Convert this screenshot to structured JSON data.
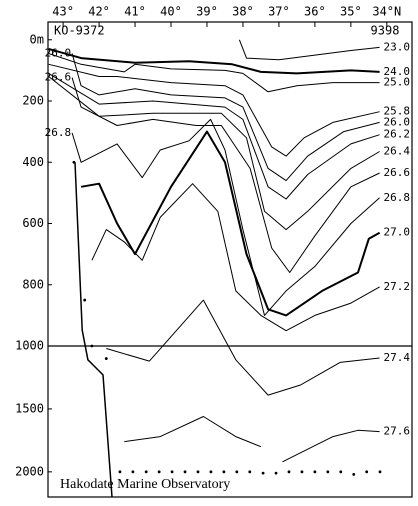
{
  "chart_data": {
    "type": "contour",
    "title": "Hakodate Marine Observatory",
    "start_label": "KO-9372",
    "end_label": "9398",
    "xlim": [
      43.42,
      33.3
    ],
    "xticks": [
      {
        "value": 43,
        "label": "43°"
      },
      {
        "value": 42,
        "label": "42°"
      },
      {
        "value": 41,
        "label": "41°"
      },
      {
        "value": 40,
        "label": "40°"
      },
      {
        "value": 39,
        "label": "39°"
      },
      {
        "value": 38,
        "label": "38°"
      },
      {
        "value": 37,
        "label": "37°"
      },
      {
        "value": 36,
        "label": "36°"
      },
      {
        "value": 35,
        "label": "35°"
      },
      {
        "value": 34,
        "label": "34°N"
      }
    ],
    "ylim": [
      -58,
      2200
    ],
    "scale_break": 1000,
    "yticks": [
      {
        "value": 0,
        "label": "0m"
      },
      200,
      400,
      600,
      800,
      1000,
      1500,
      2000
    ],
    "color": "#000000",
    "series": [
      {
        "name": "23.0",
        "width": 1,
        "x": [
          38.1,
          37.9,
          37.0,
          36.0,
          35.0,
          34.2
        ],
        "values": [
          0,
          60,
          65,
          50,
          35,
          25
        ]
      },
      {
        "name": "24.0",
        "width": 2,
        "x": [
          43.4,
          42.5,
          41.0,
          39.5,
          38.3,
          37.5,
          36.5,
          35.0,
          34.2
        ],
        "values": [
          30,
          60,
          75,
          70,
          80,
          105,
          110,
          100,
          105
        ]
      },
      {
        "name": "25.0",
        "width": 1,
        "x": [
          43.4,
          42.5,
          41.3,
          41.0,
          40.0,
          38.5,
          38.0,
          37.3,
          36.5,
          35.5,
          34.2
        ],
        "values": [
          45,
          80,
          105,
          80,
          95,
          100,
          110,
          170,
          150,
          140,
          140
        ]
      },
      {
        "name": "25.8",
        "width": 1,
        "x": [
          43.4,
          42.0,
          41.5,
          40.0,
          38.5,
          38.0,
          37.2,
          36.8,
          36.3,
          35.5,
          34.2
        ],
        "values": [
          80,
          120,
          120,
          140,
          150,
          180,
          350,
          380,
          320,
          270,
          235
        ]
      },
      {
        "name": "26.0",
        "width": 1,
        "label_left": true,
        "x": [
          42.75,
          42.5,
          42.0,
          41.0,
          40.0,
          38.5,
          38.0,
          37.3,
          36.8,
          36.2,
          35.2,
          34.2
        ],
        "values": [
          45,
          150,
          180,
          160,
          180,
          190,
          220,
          420,
          460,
          380,
          300,
          270
        ]
      },
      {
        "name": "26.2",
        "width": 1,
        "x": [
          43.4,
          42.0,
          40.5,
          38.5,
          38.0,
          37.3,
          36.8,
          36.2,
          35.0,
          34.2
        ],
        "values": [
          110,
          210,
          200,
          220,
          260,
          480,
          520,
          440,
          340,
          310
        ]
      },
      {
        "name": "26.4",
        "width": 1,
        "x": [
          43.4,
          42.0,
          40.5,
          38.6,
          37.9,
          37.4,
          36.8,
          36.2,
          35.0,
          34.2
        ],
        "values": [
          120,
          250,
          240,
          240,
          320,
          560,
          620,
          560,
          420,
          365
        ]
      },
      {
        "name": "26.6",
        "width": 1,
        "label_left": true,
        "x": [
          42.75,
          42.5,
          41.5,
          40.5,
          39.3,
          38.6,
          37.8,
          37.2,
          36.7,
          36.0,
          35.0,
          34.2
        ],
        "values": [
          124,
          220,
          280,
          260,
          280,
          280,
          420,
          680,
          760,
          640,
          480,
          435
        ]
      },
      {
        "name": "26.8",
        "width": 1,
        "label_left": true,
        "x": [
          42.75,
          42.5,
          41.5,
          40.8,
          40.3,
          39.5,
          38.9,
          38.5,
          38.0,
          37.4,
          36.8,
          36.0,
          35.0,
          34.2
        ],
        "values": [
          304,
          400,
          340,
          450,
          360,
          330,
          260,
          360,
          620,
          900,
          820,
          740,
          600,
          516
        ]
      },
      {
        "name": "27.0",
        "width": 2,
        "x": [
          42.5,
          42.0,
          41.5,
          41.0,
          40.0,
          39.0,
          38.5,
          37.9,
          37.3,
          36.8,
          35.8,
          34.8,
          34.5,
          34.2
        ],
        "values": [
          480,
          470,
          600,
          700,
          480,
          300,
          400,
          700,
          880,
          900,
          820,
          760,
          650,
          630
        ]
      },
      {
        "name": "27.2",
        "width": 1,
        "x": [
          42.2,
          41.8,
          41.3,
          40.8,
          40.3,
          39.4,
          38.7,
          38.2,
          37.5,
          36.8,
          36.0,
          35.0,
          34.2
        ],
        "values": [
          720,
          620,
          660,
          720,
          580,
          470,
          560,
          820,
          900,
          950,
          900,
          860,
          807
        ]
      },
      {
        "name": "27.4",
        "width": 1,
        "x": [
          41.8,
          40.6,
          39.1,
          38.2,
          37.3,
          36.4,
          35.3,
          34.2
        ],
        "values": [
          1020,
          1120,
          850,
          1110,
          1390,
          1310,
          1130,
          1095
        ]
      },
      {
        "name": "27.6",
        "width": 1,
        "x": [
          41.3,
          40.3,
          39.1,
          38.2,
          37.5,
          null,
          36.9,
          35.5,
          34.8,
          34.2
        ],
        "values": [
          1760,
          1720,
          1560,
          1720,
          1800,
          null,
          1920,
          1720,
          1670,
          1680
        ]
      }
    ],
    "bottom": {
      "x": [
        42.67,
        42.47,
        42.31,
        41.89,
        41.64
      ],
      "values": [
        400,
        948,
        1110,
        1230,
        2200
      ]
    },
    "stations": {
      "x": [
        42.7,
        42.4,
        42.2,
        41.8,
        41.42,
        41.06,
        40.69,
        40.33,
        39.97,
        39.61,
        39.25,
        38.89,
        38.53,
        38.17,
        37.81,
        37.44,
        37.08,
        36.72,
        36.36,
        36.0,
        35.64,
        35.28,
        34.92,
        34.56,
        34.19
      ],
      "values": [
        400,
        850,
        1000,
        1100,
        2000,
        2000,
        2000,
        2000,
        2000,
        2000,
        2000,
        2000,
        2000,
        2000,
        2000,
        2010,
        2010,
        2000,
        2000,
        2000,
        2000,
        2000,
        2020,
        2000,
        2000
      ]
    }
  }
}
